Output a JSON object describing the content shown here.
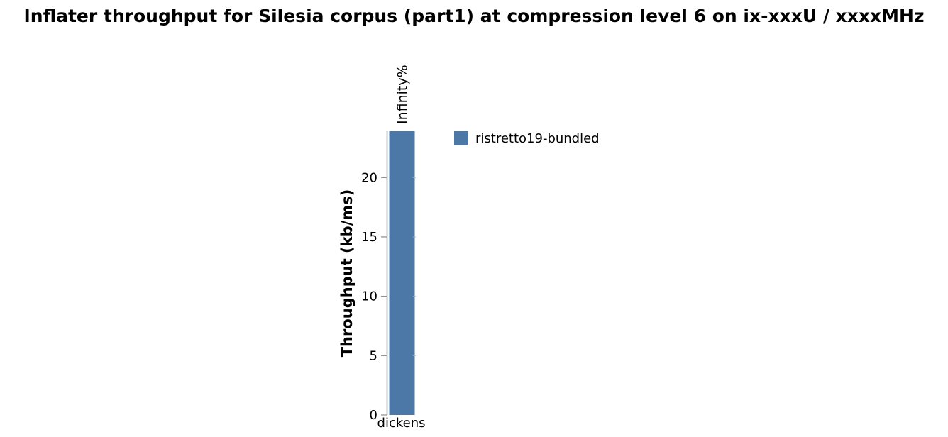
{
  "chart_data": {
    "type": "bar",
    "title": "Inflater throughput for Silesia corpus (part1) at compression level 6 on ix-xxxU / xxxxMHz",
    "xlabel": "",
    "ylabel": "Throughput (kb/ms)",
    "categories": [
      "dickens"
    ],
    "series": [
      {
        "name": "ristretto19-bundled",
        "values": [
          23.9
        ],
        "labels": [
          "Infinity%"
        ],
        "color": "#4c78a8"
      }
    ],
    "ylim": [
      0,
      23.9
    ],
    "yticks": [
      0,
      5,
      10,
      15,
      20
    ],
    "grid": false,
    "legend_position": "right"
  }
}
